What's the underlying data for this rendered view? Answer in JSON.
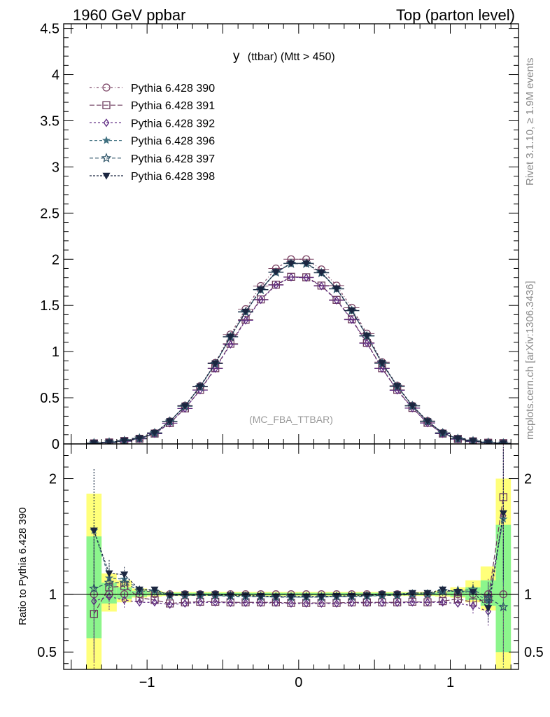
{
  "header": {
    "left": "1960 GeV ppbar",
    "right": "Top (parton level)"
  },
  "side_labels": {
    "rivet": "Rivet 3.1.10, ≥ 1.9M events",
    "mcplots": "mcplots.cern.ch [arXiv:1306.3436]"
  },
  "chart_data": {
    "type": "line",
    "title_main": "y",
    "title_sub": "(ttbar) (Mtt > 450)",
    "watermark": "(MC_FBA_TTBAR)",
    "ylabel_ratio": "Ratio to Pythia 6.428 390",
    "main": {
      "xlim": [
        -1.55,
        1.45
      ],
      "ylim": [
        0,
        4.55
      ],
      "yticks": [
        "0",
        "0.5",
        "1",
        "1.5",
        "2",
        "2.5",
        "3",
        "3.5",
        "4",
        "4.5"
      ],
      "ytick_values": [
        0,
        0.5,
        1,
        1.5,
        2,
        2.5,
        3,
        3.5,
        4,
        4.5
      ]
    },
    "ratio": {
      "ylim": [
        0.35,
        2.3
      ],
      "yticks": [
        "0.5",
        "1",
        "2"
      ],
      "ytick_values": [
        0.5,
        1,
        2
      ],
      "xticks": [
        "−1",
        "0",
        "1"
      ],
      "xtick_values": [
        -1,
        0,
        1
      ]
    },
    "x": [
      -1.35,
      -1.25,
      -1.15,
      -1.05,
      -0.95,
      -0.85,
      -0.75,
      -0.65,
      -0.55,
      -0.45,
      -0.35,
      -0.25,
      -0.15,
      -0.05,
      0.05,
      0.15,
      0.25,
      0.35,
      0.45,
      0.55,
      0.65,
      0.75,
      0.85,
      0.95,
      1.05,
      1.15,
      1.25,
      1.35
    ],
    "bands": {
      "yellow": [
        [
          0.35,
          1.87
        ],
        [
          0.85,
          1.18
        ],
        [
          0.93,
          1.12
        ],
        [
          0.97,
          1.05
        ],
        [
          0.98,
          1.03
        ],
        [
          0.985,
          1.02
        ],
        [
          0.985,
          1.02
        ],
        [
          0.985,
          1.02
        ],
        [
          0.985,
          1.02
        ],
        [
          0.985,
          1.02
        ],
        [
          0.985,
          1.02
        ],
        [
          0.985,
          1.02
        ],
        [
          0.985,
          1.02
        ],
        [
          0.985,
          1.02
        ],
        [
          0.985,
          1.02
        ],
        [
          0.985,
          1.02
        ],
        [
          0.985,
          1.02
        ],
        [
          0.985,
          1.02
        ],
        [
          0.985,
          1.02
        ],
        [
          0.985,
          1.02
        ],
        [
          0.985,
          1.02
        ],
        [
          0.985,
          1.02
        ],
        [
          0.985,
          1.02
        ],
        [
          0.98,
          1.03
        ],
        [
          0.97,
          1.06
        ],
        [
          0.93,
          1.12
        ],
        [
          0.86,
          1.24
        ],
        [
          0.35,
          2.0
        ]
      ],
      "green": [
        [
          0.62,
          1.5
        ],
        [
          0.92,
          1.1
        ],
        [
          0.96,
          1.06
        ],
        [
          0.98,
          1.03
        ],
        [
          0.99,
          1.015
        ],
        [
          0.99,
          1.012
        ],
        [
          0.99,
          1.012
        ],
        [
          0.99,
          1.012
        ],
        [
          0.99,
          1.012
        ],
        [
          0.99,
          1.012
        ],
        [
          0.99,
          1.012
        ],
        [
          0.99,
          1.012
        ],
        [
          0.99,
          1.012
        ],
        [
          0.99,
          1.012
        ],
        [
          0.99,
          1.012
        ],
        [
          0.99,
          1.012
        ],
        [
          0.99,
          1.012
        ],
        [
          0.99,
          1.012
        ],
        [
          0.99,
          1.012
        ],
        [
          0.99,
          1.012
        ],
        [
          0.99,
          1.012
        ],
        [
          0.99,
          1.012
        ],
        [
          0.99,
          1.012
        ],
        [
          0.99,
          1.015
        ],
        [
          0.98,
          1.03
        ],
        [
          0.95,
          1.06
        ],
        [
          0.9,
          1.12
        ],
        [
          0.5,
          1.6
        ]
      ]
    },
    "series": [
      {
        "name": "Pythia 6.428 390",
        "color": "#7d4667",
        "marker": "circle",
        "dash": "3,3,1,3",
        "values": [
          0.008,
          0.015,
          0.03,
          0.058,
          0.118,
          0.245,
          0.415,
          0.625,
          0.878,
          1.185,
          1.46,
          1.71,
          1.9,
          2.0,
          2.0,
          1.89,
          1.715,
          1.475,
          1.195,
          0.885,
          0.63,
          0.415,
          0.248,
          0.118,
          0.056,
          0.03,
          0.015,
          0.005
        ],
        "ratio": [
          1,
          1,
          1,
          1,
          1,
          1,
          1,
          1,
          1,
          1,
          1,
          1,
          1,
          1,
          1,
          1,
          1,
          1,
          1,
          1,
          1,
          1,
          1,
          1,
          1,
          1,
          1,
          1
        ]
      },
      {
        "name": "Pythia 6.428 391",
        "color": "#6b3a5c",
        "marker": "square",
        "dash": "7,3",
        "values": [
          0.006,
          0.016,
          0.032,
          0.056,
          0.112,
          0.225,
          0.385,
          0.585,
          0.82,
          1.085,
          1.345,
          1.565,
          1.725,
          1.81,
          1.805,
          1.715,
          1.56,
          1.35,
          1.095,
          0.82,
          0.585,
          0.39,
          0.228,
          0.112,
          0.054,
          0.028,
          0.013,
          0.009
        ],
        "ratio": [
          0.83,
          1.06,
          1.07,
          0.97,
          0.95,
          0.92,
          0.93,
          0.935,
          0.935,
          0.93,
          0.93,
          0.93,
          0.93,
          0.925,
          0.925,
          0.925,
          0.925,
          0.93,
          0.93,
          0.93,
          0.93,
          0.935,
          0.93,
          0.94,
          0.96,
          0.93,
          0.96,
          1.84
        ]
      },
      {
        "name": "Pythia 6.428 392",
        "color": "#5e2a82",
        "marker": "diamond",
        "dash": "3,3",
        "values": [
          0.007,
          0.014,
          0.028,
          0.055,
          0.11,
          0.225,
          0.383,
          0.582,
          0.815,
          1.078,
          1.338,
          1.56,
          1.72,
          1.805,
          1.8,
          1.71,
          1.555,
          1.345,
          1.09,
          0.815,
          0.58,
          0.387,
          0.226,
          0.11,
          0.051,
          0.026,
          0.011,
          0.008
        ],
        "ratio": [
          0.94,
          0.98,
          0.95,
          0.93,
          0.93,
          0.91,
          0.92,
          0.93,
          0.93,
          0.925,
          0.925,
          0.925,
          0.925,
          0.92,
          0.92,
          0.92,
          0.92,
          0.925,
          0.925,
          0.925,
          0.925,
          0.93,
          0.93,
          0.93,
          0.92,
          0.9,
          0.85,
          1.68
        ]
      },
      {
        "name": "Pythia 6.428 396",
        "color": "#3f7080",
        "marker": "star",
        "dash": "4,3",
        "values": [
          0.009,
          0.017,
          0.034,
          0.06,
          0.118,
          0.245,
          0.41,
          0.62,
          0.87,
          1.16,
          1.43,
          1.67,
          1.86,
          1.955,
          1.955,
          1.855,
          1.68,
          1.445,
          1.17,
          0.875,
          0.625,
          0.412,
          0.245,
          0.118,
          0.057,
          0.031,
          0.014,
          0.006
        ],
        "ratio": [
          1.55,
          1.14,
          1.13,
          1.04,
          1.03,
          1.0,
          0.99,
          0.99,
          0.99,
          0.98,
          0.98,
          0.98,
          0.975,
          0.975,
          0.975,
          0.975,
          0.98,
          0.98,
          0.98,
          0.99,
          0.99,
          1.0,
          1.0,
          1.02,
          1.03,
          1.02,
          0.94,
          1.65
        ]
      },
      {
        "name": "Pythia 6.428 397",
        "color": "#2e5468",
        "marker": "star-open",
        "dash": "5,3",
        "values": [
          0.008,
          0.016,
          0.033,
          0.06,
          0.117,
          0.243,
          0.408,
          0.618,
          0.868,
          1.158,
          1.428,
          1.668,
          1.858,
          1.952,
          1.952,
          1.852,
          1.678,
          1.442,
          1.168,
          0.872,
          0.622,
          0.41,
          0.243,
          0.117,
          0.056,
          0.03,
          0.014,
          0.006
        ],
        "ratio": [
          1.05,
          1.1,
          1.1,
          1.03,
          1.02,
          0.99,
          0.99,
          0.99,
          0.99,
          0.985,
          0.98,
          0.98,
          0.975,
          0.975,
          0.975,
          0.975,
          0.98,
          0.98,
          0.985,
          0.99,
          0.99,
          1.0,
          1.0,
          1.03,
          1.03,
          1.04,
          0.97,
          0.89
        ]
      },
      {
        "name": "Pythia 6.428 398",
        "color": "#1b2640",
        "marker": "triangle-down",
        "dash": "3,2",
        "values": [
          0.009,
          0.017,
          0.035,
          0.061,
          0.12,
          0.246,
          0.412,
          0.622,
          0.872,
          1.162,
          1.432,
          1.672,
          1.862,
          1.956,
          1.956,
          1.856,
          1.682,
          1.446,
          1.172,
          0.876,
          0.626,
          0.413,
          0.246,
          0.12,
          0.058,
          0.032,
          0.014,
          0.007
        ],
        "ratio": [
          1.55,
          1.18,
          1.17,
          1.04,
          1.04,
          0.99,
          1.0,
          1.0,
          1.0,
          0.99,
          0.99,
          0.985,
          0.98,
          0.98,
          0.98,
          0.98,
          0.985,
          0.985,
          0.99,
          1.0,
          1.0,
          1.01,
          1.01,
          1.04,
          1.02,
          1.02,
          0.88,
          1.7
        ]
      }
    ]
  }
}
